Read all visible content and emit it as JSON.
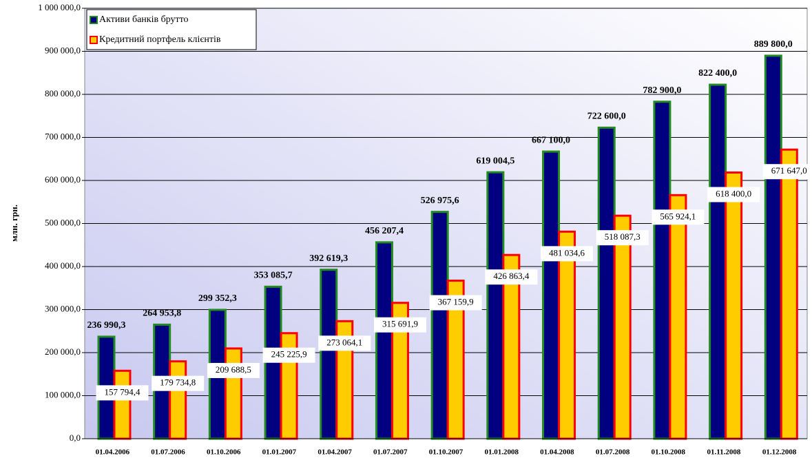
{
  "chart_data": {
    "type": "bar",
    "y_label": "млн. грн.",
    "categories": [
      "01.04.2006",
      "01.07.2006",
      "01.10.2006",
      "01.01.2007",
      "01.04.2007",
      "01.07.2007",
      "01.10.2007",
      "01.01.2008",
      "01.04.2008",
      "01.07.2008",
      "01.10.2008",
      "01.11.2008",
      "01.12.2008"
    ],
    "series": [
      {
        "name": "Активи банків брутто",
        "color": "#000080",
        "stroke": "#228B22",
        "values": [
          236990.3,
          264953.8,
          299352.3,
          353085.7,
          392619.3,
          456207.4,
          526975.6,
          619004.5,
          667100.0,
          722600.0,
          782900.0,
          822400.0,
          889800.0
        ],
        "value_labels": [
          "236 990,3",
          "264 953,8",
          "299 352,3",
          "353 085,7",
          "392 619,3",
          "456 207,4",
          "526 975,6",
          "619 004,5",
          "667 100,0",
          "722 600,0",
          "782 900,0",
          "822 400,0",
          "889 800,0"
        ]
      },
      {
        "name": "Кредитний портфель клієнтів",
        "color": "#FFCC00",
        "stroke": "#FF0000",
        "values": [
          157794.4,
          179734.8,
          209688.5,
          245225.9,
          273064.1,
          315691.9,
          367159.9,
          426863.4,
          481034.6,
          518087.3,
          565924.1,
          618400.0,
          671647.0
        ],
        "value_labels": [
          "157 794,4",
          "179 734,8",
          "209 688,5",
          "245 225,9",
          "273 064,1",
          "315 691,9",
          "367 159,9",
          "426 863,4",
          "481 034,6",
          "518 087,3",
          "565 924,1",
          "618 400,0",
          "671 647,0"
        ]
      }
    ],
    "ylim": [
      0,
      1000000
    ],
    "yticks": [
      {
        "value": 0,
        "label": "0,0"
      },
      {
        "value": 100000,
        "label": "100 000,0"
      },
      {
        "value": 200000,
        "label": "200 000,0"
      },
      {
        "value": 300000,
        "label": "300 000,0"
      },
      {
        "value": 400000,
        "label": "400 000,0"
      },
      {
        "value": 500000,
        "label": "500 000,0"
      },
      {
        "value": 600000,
        "label": "600 000,0"
      },
      {
        "value": 700000,
        "label": "700 000,0"
      },
      {
        "value": 800000,
        "label": "800 000,0"
      },
      {
        "value": 900000,
        "label": "900 000,0"
      },
      {
        "value": 1000000,
        "label": "1 000 000,0"
      }
    ],
    "grid": true,
    "legend": "upper left"
  }
}
